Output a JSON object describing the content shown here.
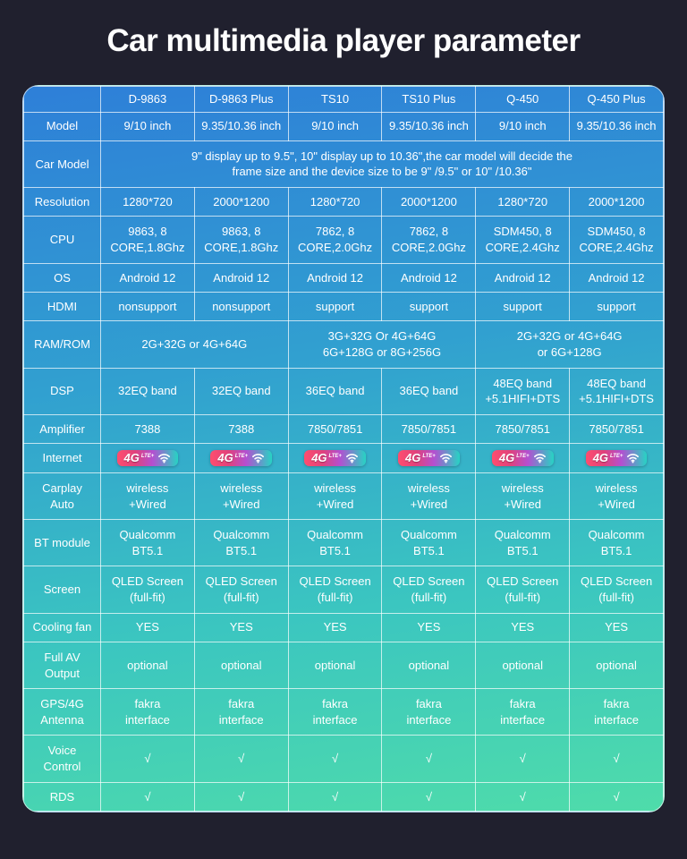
{
  "title": "Car multimedia player parameter",
  "table": {
    "products": [
      "D-9863",
      "D-9863 Plus",
      "TS10",
      "TS10 Plus",
      "Q-450",
      "Q-450 Plus"
    ],
    "badge": {
      "text_4g": "4G",
      "text_lte": "LTE+"
    },
    "rows": [
      {
        "label": "Model",
        "cells": [
          "9/10 inch",
          "9.35/10.36 inch",
          "9/10 inch",
          "9.35/10.36 inch",
          "9/10 inch",
          "9.35/10.36 inch"
        ]
      },
      {
        "label": "Car Model",
        "merged": "9\" display up to 9.5\", 10\" display up to 10.36\",the car model will decide the\nframe size and the device size to be 9\" /9.5\" or 10\" /10.36\""
      },
      {
        "label": "Resolution",
        "cells": [
          "1280*720",
          "2000*1200",
          "1280*720",
          "2000*1200",
          "1280*720",
          "2000*1200"
        ]
      },
      {
        "label": "CPU",
        "cells": [
          "9863, 8\nCORE,1.8Ghz",
          "9863, 8\nCORE,1.8Ghz",
          "7862, 8\nCORE,2.0Ghz",
          "7862, 8\nCORE,2.0Ghz",
          "SDM450, 8\nCORE,2.4Ghz",
          "SDM450, 8\nCORE,2.4Ghz"
        ]
      },
      {
        "label": "OS",
        "cells": [
          "Android 12",
          "Android 12",
          "Android 12",
          "Android 12",
          "Android 12",
          "Android 12"
        ]
      },
      {
        "label": "HDMI",
        "cells": [
          "nonsupport",
          "nonsupport",
          "support",
          "support",
          "support",
          "support"
        ]
      },
      {
        "label": "RAM/ROM",
        "groups": [
          {
            "span": 2,
            "text": "2G+32G or 4G+64G"
          },
          {
            "span": 2,
            "text": "3G+32G Or 4G+64G\n6G+128G or 8G+256G"
          },
          {
            "span": 2,
            "text": "2G+32G or 4G+64G\nor 6G+128G"
          }
        ]
      },
      {
        "label": "DSP",
        "cells": [
          "32EQ band",
          "32EQ band",
          "36EQ band",
          "36EQ band",
          "48EQ band\n+5.1HIFI+DTS",
          "48EQ band\n+5.1HIFI+DTS"
        ]
      },
      {
        "label": "Amplifier",
        "cells": [
          "7388",
          "7388",
          "7850/7851",
          "7850/7851",
          "7850/7851",
          "7850/7851"
        ]
      },
      {
        "label": "Internet",
        "badge_row": true
      },
      {
        "label": "Carplay\nAuto",
        "cells": [
          "wireless\n+Wired",
          "wireless\n+Wired",
          "wireless\n+Wired",
          "wireless\n+Wired",
          "wireless\n+Wired",
          "wireless\n+Wired"
        ]
      },
      {
        "label": "BT module",
        "cells": [
          "Qualcomm\nBT5.1",
          "Qualcomm\nBT5.1",
          "Qualcomm\nBT5.1",
          "Qualcomm\nBT5.1",
          "Qualcomm\nBT5.1",
          "Qualcomm\nBT5.1"
        ]
      },
      {
        "label": "Screen",
        "cells": [
          "QLED Screen\n(full-fit)",
          "QLED Screen\n(full-fit)",
          "QLED Screen\n(full-fit)",
          "QLED Screen\n(full-fit)",
          "QLED Screen\n(full-fit)",
          "QLED Screen\n(full-fit)"
        ]
      },
      {
        "label": "Cooling fan",
        "cells": [
          "YES",
          "YES",
          "YES",
          "YES",
          "YES",
          "YES"
        ]
      },
      {
        "label": "Full AV\nOutput",
        "cells": [
          "optional",
          "optional",
          "optional",
          "optional",
          "optional",
          "optional"
        ]
      },
      {
        "label": "GPS/4G\nAntenna",
        "cells": [
          "fakra\ninterface",
          "fakra\ninterface",
          "fakra\ninterface",
          "fakra\ninterface",
          "fakra\ninterface",
          "fakra\ninterface"
        ]
      },
      {
        "label": "Voice\nControl",
        "cells": [
          "√",
          "√",
          "√",
          "√",
          "√",
          "√"
        ]
      },
      {
        "label": "RDS",
        "cells": [
          "√",
          "√",
          "√",
          "√",
          "√",
          "√"
        ]
      }
    ]
  }
}
